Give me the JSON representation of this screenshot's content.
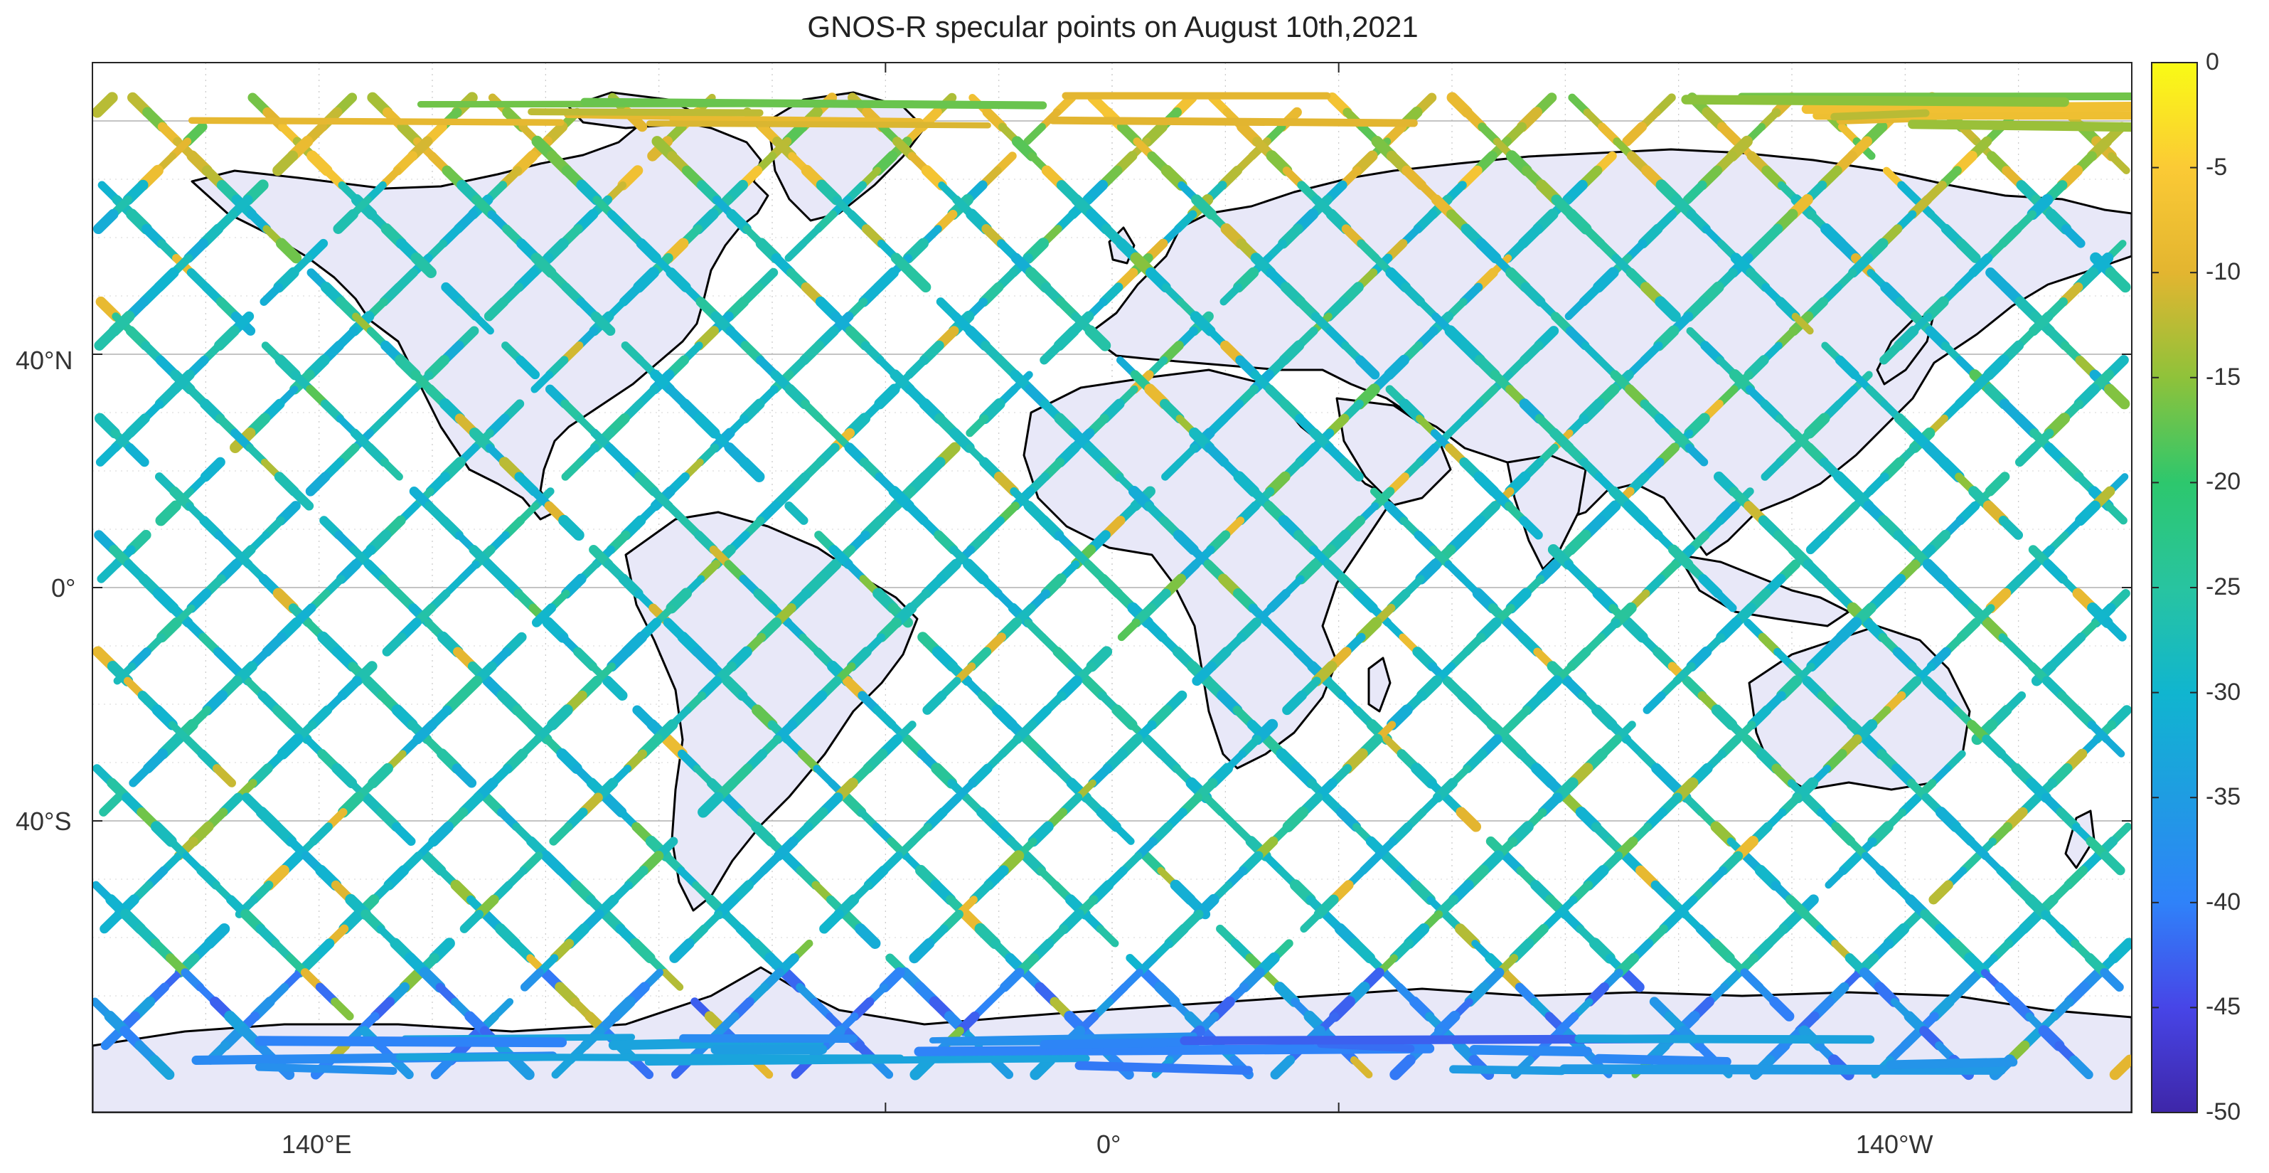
{
  "map": {
    "title": "GNOS-R specular points on August 10th,2021",
    "projection": "equirectangular, Pacific-centred (map centre 180°, Greenwich in the middle)",
    "lon_ticks": [
      {
        "lon": 140,
        "label": "140°E"
      },
      {
        "lon": 0,
        "label": "0°"
      },
      {
        "lon": -140,
        "label": "140°W"
      }
    ],
    "lat_ticks": [
      {
        "lat": 40,
        "label": "40°N"
      },
      {
        "lat": 0,
        "label": "0°"
      },
      {
        "lat": -40,
        "label": "40°S"
      }
    ],
    "land_color": "#e8e8f8",
    "ocean_color": "#ffffff",
    "coastline_color": "#000000",
    "grid": "dotted light-grey graticule"
  },
  "colorbar": {
    "range": [
      -50,
      0
    ],
    "ticks": [
      "0",
      "-5",
      "-10",
      "-15",
      "-20",
      "-25",
      "-30",
      "-35",
      "-40",
      "-45",
      "-50"
    ],
    "tick_values": [
      0,
      -5,
      -10,
      -15,
      -20,
      -25,
      -30,
      -35,
      -40,
      -45,
      -50
    ],
    "colormap": "parula",
    "stops": [
      "#3e26a8",
      "#4745e7",
      "#2f82f9",
      "#1f9ce2",
      "#10b5cf",
      "#28c4a0",
      "#2dc76d",
      "#8fc23a",
      "#e3b530",
      "#fbca35",
      "#f9fb15"
    ]
  },
  "tracks": {
    "description": "descending and ascending specular-point ground tracks, colored by value",
    "dominant_value": -28,
    "polar_cluster_value_north": -12,
    "polar_cluster_value_south": -38
  }
}
